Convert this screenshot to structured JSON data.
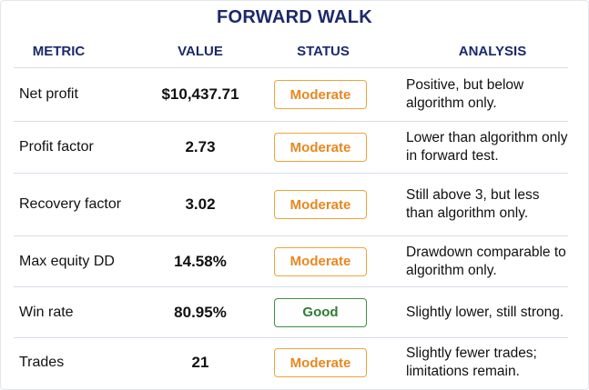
{
  "title": "FORWARD WALK",
  "headers": {
    "metric": "METRIC",
    "value": "VALUE",
    "status": "STATUS",
    "analysis": "ANALYSIS"
  },
  "colors": {
    "header_text": "#1b2a6b",
    "moderate": "#e8871e",
    "good": "#2f7d32"
  },
  "rows": [
    {
      "metric": "Net profit",
      "value": "$10,437.71",
      "status": "Moderate",
      "analysis": "Positive, but below algorithm only."
    },
    {
      "metric": "Profit factor",
      "value": "2.73",
      "status": "Moderate",
      "analysis": "Lower than algorithm only in forward test."
    },
    {
      "metric": "Recovery factor",
      "value": "3.02",
      "status": "Moderate",
      "analysis": "Still above 3, but less than algorithm only."
    },
    {
      "metric": "Max equity DD",
      "value": "14.58%",
      "status": "Moderate",
      "analysis": "Drawdown comparable to algorithm only."
    },
    {
      "metric": "Win rate",
      "value": "80.95%",
      "status": "Good",
      "analysis": "Slightly lower, still strong."
    },
    {
      "metric": "Trades",
      "value": "21",
      "status": "Moderate",
      "analysis": "Slightly fewer trades; limitations remain."
    }
  ]
}
